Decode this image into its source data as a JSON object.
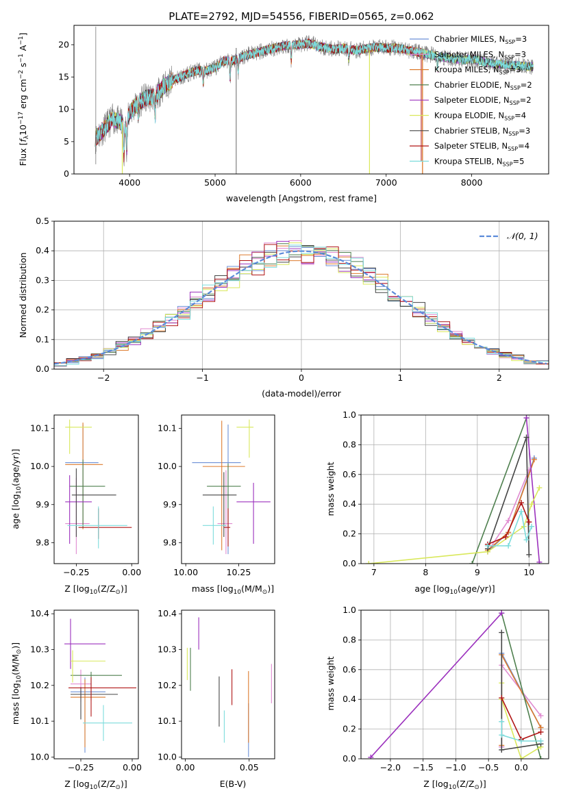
{
  "colors": [
    "#6b8fd6",
    "#e08ad0",
    "#dd7a2c",
    "#4e7f4e",
    "#9b30bd",
    "#d9e85a",
    "#444444",
    "#b01515",
    "#7cdcdc"
  ],
  "chart_data": [
    {
      "id": "spectrum",
      "type": "line",
      "title": "PLATE=2792, MJD=54556, FIBERID=0565, z=0.062",
      "xlabel": "wavelength [Angstrom, rest frame]",
      "ylabel_parts": [
        "Flux [",
        "f",
        "λ",
        "10",
        "−17",
        " erg cm",
        "−2",
        " s",
        "−1",
        " A",
        "−1",
        "]"
      ],
      "xlim": [
        3350,
        8900
      ],
      "ylim": [
        0,
        23
      ],
      "xticks": [
        4000,
        5000,
        6000,
        7000,
        8000
      ],
      "yticks": [
        0,
        5,
        10,
        15,
        20
      ],
      "legend": "upper right",
      "legend_entries": [
        {
          "text": "Chabrier MILES, N",
          "sub": "SSP",
          "val": "=3"
        },
        {
          "text": "Salpeter MILES, N",
          "sub": "SSP",
          "val": "=3"
        },
        {
          "text": "Kroupa MILES, N",
          "sub": "SSP",
          "val": "=3"
        },
        {
          "text": "Chabrier ELODIE, N",
          "sub": "SSP",
          "val": "=2"
        },
        {
          "text": "Salpeter ELODIE, N",
          "sub": "SSP",
          "val": "=2"
        },
        {
          "text": "Kroupa ELODIE, N",
          "sub": "SSP",
          "val": "=4"
        },
        {
          "text": "Chabrier STELIB, N",
          "sub": "SSP",
          "val": "=3"
        },
        {
          "text": "Salpeter STELIB, N",
          "sub": "SSP",
          "val": "=4"
        },
        {
          "text": "Kroupa STELIB, N",
          "sub": "SSP",
          "val": "=5"
        }
      ],
      "continuum": [
        [
          3600,
          5.5
        ],
        [
          3700,
          7
        ],
        [
          3800,
          8.5
        ],
        [
          3900,
          8
        ],
        [
          3950,
          7
        ],
        [
          4000,
          9.5
        ],
        [
          4100,
          11
        ],
        [
          4200,
          11.8
        ],
        [
          4300,
          12
        ],
        [
          4400,
          13.5
        ],
        [
          4500,
          14.5
        ],
        [
          4600,
          15
        ],
        [
          4700,
          15.6
        ],
        [
          4800,
          16
        ],
        [
          4900,
          16
        ],
        [
          5000,
          16.4
        ],
        [
          5100,
          17.5
        ],
        [
          5200,
          17.5
        ],
        [
          5300,
          18
        ],
        [
          5400,
          18.5
        ],
        [
          5500,
          18.8
        ],
        [
          5600,
          19.2
        ],
        [
          5700,
          19.5
        ],
        [
          5800,
          19.8
        ],
        [
          5900,
          20
        ],
        [
          6000,
          20
        ],
        [
          6100,
          20.2
        ],
        [
          6200,
          19.8
        ],
        [
          6300,
          19.5
        ],
        [
          6400,
          19.3
        ],
        [
          6500,
          19.5
        ],
        [
          6600,
          19.2
        ],
        [
          6700,
          19.2
        ],
        [
          6800,
          19.5
        ],
        [
          6900,
          19.6
        ],
        [
          7000,
          19.5
        ],
        [
          7100,
          19.5
        ],
        [
          7200,
          19.3
        ],
        [
          7300,
          19
        ],
        [
          7400,
          18.8
        ],
        [
          7500,
          18.5
        ],
        [
          7600,
          18.2
        ],
        [
          7700,
          18
        ],
        [
          7800,
          17.8
        ],
        [
          7900,
          17.7
        ],
        [
          8000,
          17.8
        ],
        [
          8100,
          17.5
        ],
        [
          8200,
          17.2
        ],
        [
          8300,
          17
        ],
        [
          8400,
          16.9
        ],
        [
          8500,
          16.8
        ],
        [
          8600,
          16.7
        ],
        [
          8700,
          16.6
        ]
      ]
    },
    {
      "id": "residuals",
      "type": "histogram",
      "xlabel": "(data-model)/error",
      "ylabel": "Normed distribution",
      "xlim": [
        -2.5,
        2.5
      ],
      "ylim": [
        0,
        0.5
      ],
      "xticks": [
        -2,
        -1,
        0,
        1,
        2
      ],
      "yticks": [
        0.0,
        0.1,
        0.2,
        0.3,
        0.4,
        0.5
      ],
      "grid": true,
      "legend": "upper right",
      "legend_label": "𝒩(0, 1)",
      "gaussian": {
        "mean": 0,
        "sigma": 1,
        "color": "#5b8ad9"
      }
    },
    {
      "id": "age-vs-Z",
      "type": "errorbar",
      "xlabel_parts": [
        "Z [log",
        "10",
        "(Z/Z",
        "⊙",
        ")]"
      ],
      "ylabel_parts": [
        "age  [log",
        "10",
        "(age/yr)]"
      ],
      "xlim": [
        -0.35,
        0.03
      ],
      "ylim": [
        9.745,
        10.135
      ],
      "xticks": [
        -0.25,
        0.0
      ],
      "xticklabels": [
        "−0.25",
        "0.00"
      ],
      "yticks": [
        9.8,
        9.9,
        10.0,
        10.1
      ],
      "points": [
        {
          "x": -0.22,
          "xerr": [
            0.08,
            0.07
          ],
          "y": 10.01,
          "yerr": [
            0.16,
            0.1
          ]
        },
        {
          "x": -0.25,
          "xerr": [
            0.05,
            0.06
          ],
          "y": 9.85,
          "yerr": [
            0.08,
            0.12
          ]
        },
        {
          "x": -0.22,
          "xerr": [
            0.08,
            0.09
          ],
          "y": 10.005,
          "yerr": [
            0.17,
            0.11
          ]
        },
        {
          "x": -0.22,
          "xerr": [
            0.06,
            0.1
          ],
          "y": 9.948,
          "yerr": [
            0.11,
            0.07
          ]
        },
        {
          "x": -0.28,
          "xerr": [
            0.02,
            0.1
          ],
          "y": 9.907,
          "yerr": [
            0.11,
            0.07
          ]
        },
        {
          "x": -0.28,
          "xerr": [
            0.02,
            0.1
          ],
          "y": 10.103,
          "yerr": [
            0.07,
            0.02
          ]
        },
        {
          "x": -0.25,
          "xerr": [
            0.02,
            0.18
          ],
          "y": 9.925,
          "yerr": [
            0.11,
            0.07
          ]
        },
        {
          "x": -0.15,
          "xerr": [
            0.09,
            0.15
          ],
          "y": 9.84,
          "yerr": [
            0.03,
            0.05
          ]
        },
        {
          "x": -0.15,
          "xerr": [
            0.14,
            0.13
          ],
          "y": 9.845,
          "yerr": [
            0.06,
            0.05
          ]
        }
      ]
    },
    {
      "id": "age-vs-mass",
      "type": "errorbar",
      "xlabel_parts": [
        "mass [log",
        "10",
        "(M/M",
        "⊙",
        ")]"
      ],
      "ylabel_parts": [],
      "xlim": [
        9.98,
        10.42
      ],
      "ylim": [
        9.745,
        10.135
      ],
      "xticks": [
        10.0,
        10.25
      ],
      "xticklabels": [
        "10.00",
        "10.25"
      ],
      "yticks": [
        9.8,
        9.9,
        10.0,
        10.1
      ],
      "points": [
        {
          "x": 10.2,
          "xerr": [
            0.17,
            0.06
          ],
          "y": 10.01,
          "yerr": [
            0.24,
            0.1
          ]
        },
        {
          "x": 10.19,
          "xerr": [
            0.04,
            0.03
          ],
          "y": 9.85,
          "yerr": [
            0.08,
            0.14
          ]
        },
        {
          "x": 10.17,
          "xerr": [
            0.09,
            0.11
          ],
          "y": 10.0,
          "yerr": [
            0.22,
            0.12
          ]
        },
        {
          "x": 10.2,
          "xerr": [
            0.1,
            0.06
          ],
          "y": 9.948,
          "yerr": [
            0.11,
            0.06
          ]
        },
        {
          "x": 10.32,
          "xerr": [
            0.08,
            0.08
          ],
          "y": 9.907,
          "yerr": [
            0.11,
            0.05
          ]
        },
        {
          "x": 10.3,
          "xerr": [
            0.06,
            0.02
          ],
          "y": 10.103,
          "yerr": [
            0.08,
            0.02
          ]
        },
        {
          "x": 10.18,
          "xerr": [
            0.1,
            0.06
          ],
          "y": 9.925,
          "yerr": [
            0.11,
            0.06
          ]
        },
        {
          "x": 10.2,
          "xerr": [
            0.02,
            0.01
          ],
          "y": 9.84,
          "yerr": [
            0.05,
            0.05
          ]
        },
        {
          "x": 10.13,
          "xerr": [
            0.05,
            0.06
          ],
          "y": 9.845,
          "yerr": [
            0.05,
            0.05
          ]
        }
      ]
    },
    {
      "id": "mass-weight-vs-age",
      "type": "line",
      "xlabel_parts": [
        "age  [log",
        "10",
        "(age/yr)]"
      ],
      "ylabel": "mass weight",
      "xlim": [
        6.75,
        10.38
      ],
      "ylim": [
        0,
        1.0
      ],
      "xticks": [
        7,
        8,
        9,
        10
      ],
      "yticks": [
        0.0,
        0.2,
        0.4,
        0.6,
        0.8,
        1.0
      ],
      "grid": true,
      "series": [
        {
          "x": [
            9.2,
            9.6,
            10.1
          ],
          "y": [
            0.08,
            0.21,
            0.71
          ]
        },
        {
          "x": [
            9.2,
            9.6,
            10.0
          ],
          "y": [
            0.08,
            0.29,
            0.63
          ]
        },
        {
          "x": [
            9.2,
            9.6,
            10.1
          ],
          "y": [
            0.09,
            0.21,
            0.7
          ]
        },
        {
          "x": [
            8.9,
            9.95
          ],
          "y": [
            0.0,
            0.98
          ]
        },
        {
          "x": [
            9.95,
            10.2
          ],
          "y": [
            0.98,
            0.01
          ]
        },
        {
          "x": [
            6.9,
            9.2,
            9.9,
            10.05,
            10.2
          ],
          "y": [
            0.0,
            0.08,
            0.25,
            0.4,
            0.51
          ]
        },
        {
          "x": [
            9.2,
            9.95,
            10.0
          ],
          "y": [
            0.1,
            0.85,
            0.06
          ]
        },
        {
          "x": [
            9.2,
            9.55,
            9.85,
            10.0
          ],
          "y": [
            0.13,
            0.18,
            0.41,
            0.28
          ]
        },
        {
          "x": [
            9.2,
            9.6,
            9.85,
            9.95,
            10.05
          ],
          "y": [
            0.12,
            0.12,
            0.35,
            0.16,
            0.25
          ]
        }
      ]
    },
    {
      "id": "mass-vs-Z",
      "type": "errorbar",
      "xlabel_parts": [
        "Z [log",
        "10",
        "(Z/Z",
        "⊙",
        ")]"
      ],
      "ylabel_parts": [
        "mass [log",
        "10",
        "(M/M",
        "⊙",
        ")]"
      ],
      "xlim": [
        -0.38,
        0.03
      ],
      "ylim": [
        9.995,
        10.41
      ],
      "xticks": [
        -0.25,
        0.0
      ],
      "xticklabels": [
        "−0.25",
        "0.00"
      ],
      "yticks": [
        10.0,
        10.1,
        10.2,
        10.3,
        10.4
      ],
      "points": [
        {
          "x": -0.23,
          "xerr": [
            0.07,
            0.1
          ],
          "y": 10.182,
          "yerr": [
            0.17,
            0.04
          ]
        },
        {
          "x": -0.25,
          "xerr": [
            0.05,
            0.05
          ],
          "y": 10.204,
          "yerr": [
            0.05,
            0.04
          ]
        },
        {
          "x": -0.23,
          "xerr": [
            0.07,
            0.1
          ],
          "y": 10.167,
          "yerr": [
            0.14,
            0.05
          ]
        },
        {
          "x": -0.2,
          "xerr": [
            0.1,
            0.15
          ],
          "y": 10.228,
          "yerr": [
            0.07,
            0.01
          ]
        },
        {
          "x": -0.3,
          "xerr": [
            0.03,
            0.17
          ],
          "y": 10.316,
          "yerr": [
            0.07,
            0.07
          ]
        },
        {
          "x": -0.29,
          "xerr": [
            0.01,
            0.16
          ],
          "y": 10.268,
          "yerr": [
            0.06,
            0.03
          ]
        },
        {
          "x": -0.25,
          "xerr": [
            0.05,
            0.18
          ],
          "y": 10.175,
          "yerr": [
            0.07,
            0.02
          ]
        },
        {
          "x": -0.2,
          "xerr": [
            0.11,
            0.22
          ],
          "y": 10.193,
          "yerr": [
            0.08,
            0.03
          ]
        },
        {
          "x": -0.14,
          "xerr": [
            0.1,
            0.14
          ],
          "y": 10.095,
          "yerr": [
            0.05,
            0.05
          ]
        }
      ]
    },
    {
      "id": "mass-vs-EBV",
      "type": "errorbar",
      "xlabel": "E(B-V)",
      "ylabel_parts": [],
      "xlim": [
        -0.003,
        0.07
      ],
      "ylim": [
        9.995,
        10.41
      ],
      "xticks": [
        0.0,
        0.05
      ],
      "xticklabels": [
        "0.00",
        "0.05"
      ],
      "yticks": [
        10.0,
        10.1,
        10.2,
        10.3,
        10.4
      ],
      "points": [
        {
          "x": 0.0495,
          "y": 10.12,
          "yerr": [
            0.12,
            0.03
          ]
        },
        {
          "x": 0.0675,
          "y": 10.2,
          "yerr": [
            0.05,
            0.06
          ]
        },
        {
          "x": 0.0495,
          "y": 10.14,
          "yerr": [
            0.1,
            0.1
          ]
        },
        {
          "x": 0.004,
          "y": 10.245,
          "yerr": [
            0.06,
            0.06
          ]
        },
        {
          "x": 0.0105,
          "y": 10.35,
          "yerr": [
            0.05,
            0.04
          ]
        },
        {
          "x": 0.0015,
          "y": 10.265,
          "yerr": [
            0.05,
            0.04
          ]
        },
        {
          "x": 0.0265,
          "y": 10.155,
          "yerr": [
            0.07,
            0.07
          ]
        },
        {
          "x": 0.0365,
          "y": 10.195,
          "yerr": [
            0.05,
            0.05
          ]
        },
        {
          "x": 0.0305,
          "y": 10.085,
          "yerr": [
            0.045,
            0.045
          ]
        }
      ]
    },
    {
      "id": "mass-weight-vs-Z",
      "type": "line",
      "xlabel_parts": [
        "Z [log",
        "10",
        "(Z/Z",
        "⊙",
        ")]"
      ],
      "ylabel": "mass weight",
      "xlim": [
        -2.45,
        0.42
      ],
      "ylim": [
        0,
        1.0
      ],
      "xticks": [
        -2.0,
        -1.5,
        -1.0,
        -0.5,
        0.0
      ],
      "xticklabels": [
        "−2.0",
        "−1.5",
        "−1.0",
        "−0.5",
        "0.0"
      ],
      "yticks": [
        0.0,
        0.2,
        0.4,
        0.6,
        0.8,
        1.0
      ],
      "grid": true,
      "series": [
        {
          "x": [
            -0.3,
            -0.3,
            0.3
          ],
          "y": [
            0.08,
            0.71,
            0.21
          ]
        },
        {
          "x": [
            -0.3,
            -0.3,
            0.3
          ],
          "y": [
            0.08,
            0.63,
            0.29
          ]
        },
        {
          "x": [
            -0.3,
            -0.3,
            0.3
          ],
          "y": [
            0.09,
            0.7,
            0.21
          ]
        },
        {
          "x": [
            -0.3,
            0.3
          ],
          "y": [
            0.98,
            0.0
          ]
        },
        {
          "x": [
            -2.3,
            -0.3
          ],
          "y": [
            0.01,
            0.98
          ]
        },
        {
          "x": [
            -0.3,
            -0.3,
            0.0,
            0.3
          ],
          "y": [
            0.51,
            0.4,
            0.0,
            0.08
          ]
        },
        {
          "x": [
            -0.3,
            -0.3,
            0.3
          ],
          "y": [
            0.85,
            0.06,
            0.1
          ]
        },
        {
          "x": [
            -0.3,
            0.0,
            0.3
          ],
          "y": [
            0.41,
            0.13,
            0.18
          ]
        },
        {
          "x": [
            -0.3,
            -0.3,
            0.0,
            0.3
          ],
          "y": [
            0.25,
            0.16,
            0.12,
            0.12
          ]
        }
      ]
    }
  ]
}
